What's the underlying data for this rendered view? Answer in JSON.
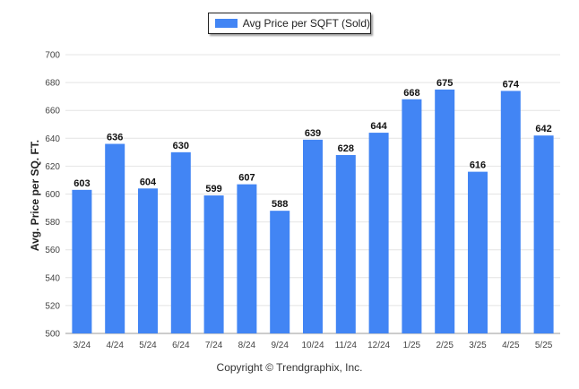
{
  "chart_data": {
    "type": "bar",
    "categories": [
      "3/24",
      "4/24",
      "5/24",
      "6/24",
      "7/24",
      "8/24",
      "9/24",
      "10/24",
      "11/24",
      "12/24",
      "1/25",
      "2/25",
      "3/25",
      "4/25",
      "5/25"
    ],
    "series": [
      {
        "name": "Avg Price per SQFT (Sold)",
        "values": [
          603,
          636,
          604,
          630,
          599,
          607,
          588,
          639,
          628,
          644,
          668,
          675,
          616,
          674,
          642
        ]
      }
    ],
    "ylabel": "Avg. Price per SQ. FT.",
    "xlabel": "",
    "ylim": [
      500,
      700
    ],
    "yticks": [
      500,
      520,
      540,
      560,
      580,
      600,
      620,
      640,
      660,
      680,
      700
    ],
    "grid": true,
    "legend_position": "top-center",
    "bar_color": "#4285f4",
    "data_labels": true
  },
  "footer": {
    "copyright": "Copyright © Trendgraphix, Inc."
  }
}
